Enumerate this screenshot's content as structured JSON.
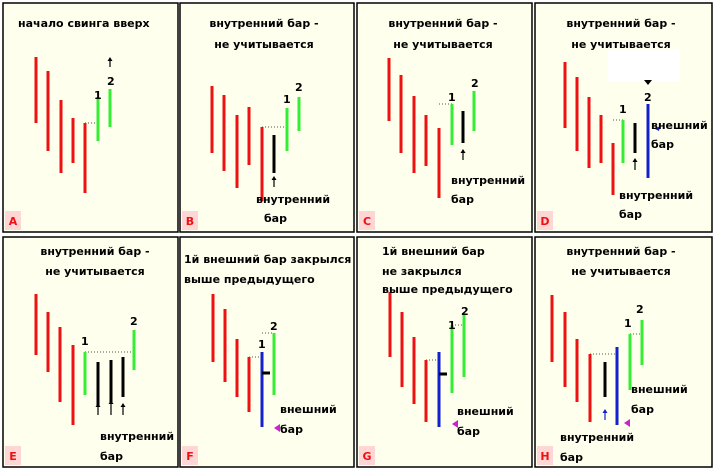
{
  "panels": [
    {
      "letter": "A",
      "title": [
        "начало свинга вверх"
      ],
      "labels": [
        "1",
        "2"
      ]
    },
    {
      "letter": "B",
      "title": [
        "внутренний бар -",
        "не учитывается"
      ],
      "labels": [
        "1",
        "2",
        "внутренний",
        "бар"
      ]
    },
    {
      "letter": "C",
      "title": [
        "внутренний бар -",
        "не учитывается"
      ],
      "labels": [
        "1",
        "2",
        "внутренний",
        "бар"
      ]
    },
    {
      "letter": "D",
      "title": [
        "внутренний бар -",
        "не учитывается"
      ],
      "labels": [
        "1",
        "2",
        "внешний",
        "бар",
        "внутренний",
        "бар"
      ]
    },
    {
      "letter": "E",
      "title": [
        "внутренний бар -",
        "не учитывается"
      ],
      "labels": [
        "1",
        "2",
        "внутренний",
        "бар"
      ]
    },
    {
      "letter": "F",
      "title": [
        "1й внешний бар закрылся",
        "выше предыдущего"
      ],
      "labels": [
        "1",
        "2",
        "внешний",
        "бар"
      ]
    },
    {
      "letter": "G",
      "title": [
        "1й внешний бар",
        "не закрылся",
        "выше предыдущего"
      ],
      "labels": [
        "1",
        "2",
        "внешний",
        "бар"
      ]
    },
    {
      "letter": "H",
      "title": [
        "внутренний бар -",
        "не учитывается"
      ],
      "labels": [
        "1",
        "2",
        "внешний",
        "бар",
        "внутренний",
        "бар"
      ]
    }
  ]
}
